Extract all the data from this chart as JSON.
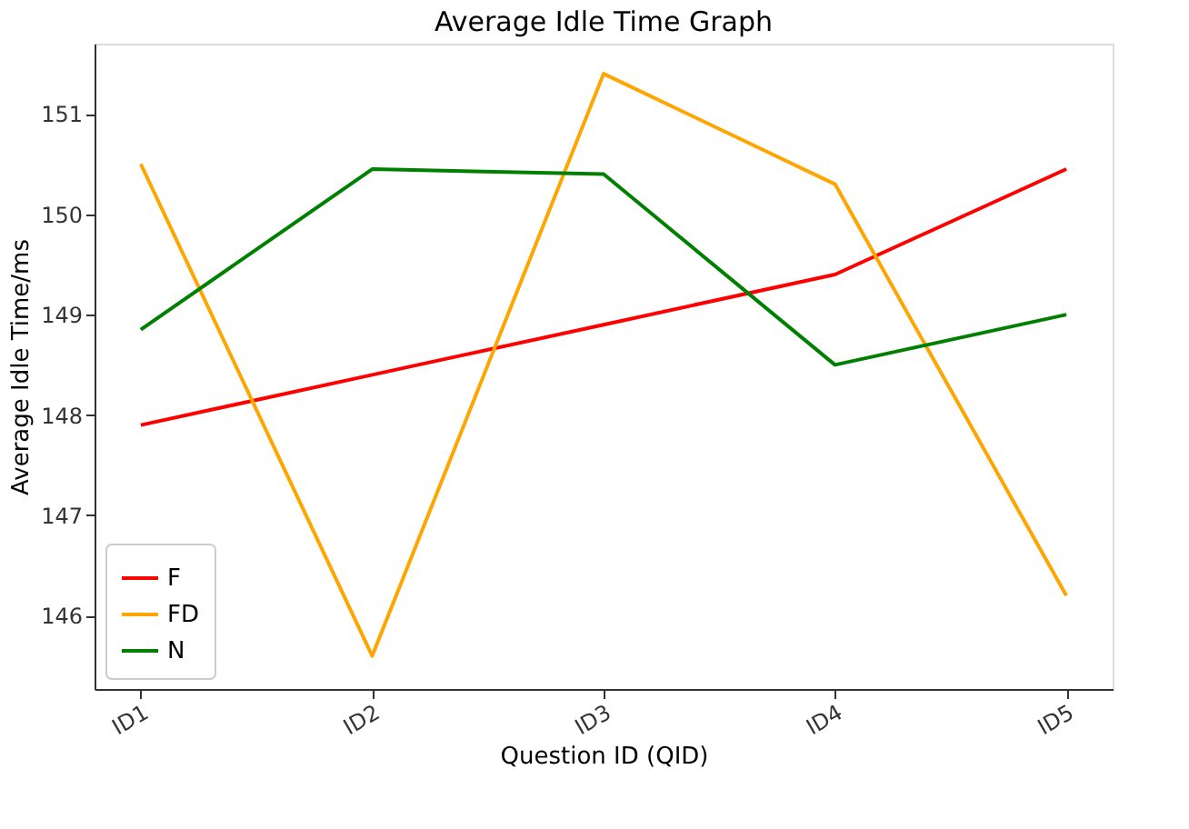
{
  "chart_data": {
    "type": "line",
    "title": "Average Idle Time Graph",
    "xlabel": "Question ID (QID)",
    "ylabel": "Average Idle Time/ms",
    "categories": [
      "ID1",
      "ID2",
      "ID3",
      "ID4",
      "ID5"
    ],
    "series": [
      {
        "name": "F",
        "color": "#ff0000",
        "values": [
          147.9,
          148.4,
          148.9,
          149.4,
          150.45
        ]
      },
      {
        "name": "FD",
        "color": "#ffa500",
        "values": [
          150.5,
          145.6,
          151.4,
          150.3,
          146.2
        ]
      },
      {
        "name": "N",
        "color": "#008000",
        "values": [
          148.85,
          150.45,
          150.4,
          148.5,
          149.0
        ]
      }
    ],
    "ylim": [
      145.27,
      151.7
    ],
    "yticks": [
      146,
      147,
      148,
      149,
      150,
      151
    ],
    "grid": false,
    "legend": "bottom left",
    "marker": "none",
    "line_style": "solid"
  }
}
